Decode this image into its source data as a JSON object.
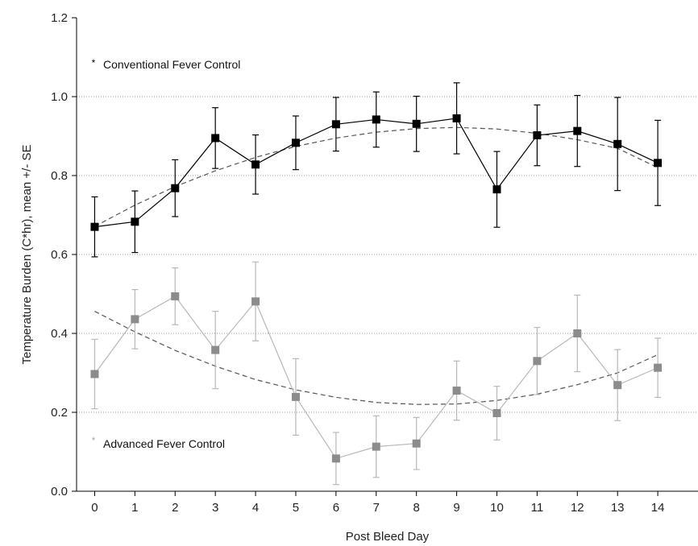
{
  "chart_data": {
    "type": "line",
    "title": "",
    "xlabel": "Post Bleed Day",
    "ylabel": "Temperature Burden (C*hr), mean +/- SE",
    "xlim": [
      -0.45,
      15
    ],
    "ylim": [
      0,
      1.2
    ],
    "x_ticks": [
      "0",
      "1",
      "2",
      "3",
      "4",
      "5",
      "6",
      "7",
      "8",
      "9",
      "10",
      "11",
      "12",
      "13",
      "14"
    ],
    "y_ticks": [
      "0.0",
      "0.2",
      "0.4",
      "0.6",
      "0.8",
      "1.0",
      "1.2"
    ],
    "grid": "horizontal dotted",
    "legend_placement": "inside-left",
    "x": [
      0,
      1,
      2,
      3,
      4,
      5,
      6,
      7,
      8,
      9,
      10,
      11,
      12,
      13,
      14
    ],
    "series": [
      {
        "name": "Conventional Fever Control",
        "color": "#000000",
        "marker": "square",
        "values": [
          0.67,
          0.683,
          0.768,
          0.895,
          0.828,
          0.883,
          0.93,
          0.942,
          0.931,
          0.945,
          0.765,
          0.902,
          0.913,
          0.88,
          0.832
        ],
        "error": [
          0.076,
          0.078,
          0.072,
          0.077,
          0.075,
          0.068,
          0.068,
          0.07,
          0.07,
          0.09,
          0.096,
          0.077,
          0.09,
          0.118,
          0.108
        ],
        "trend": [
          0.671,
          0.725,
          0.772,
          0.812,
          0.846,
          0.874,
          0.895,
          0.91,
          0.919,
          0.922,
          0.918,
          0.907,
          0.891,
          0.869,
          0.82
        ]
      },
      {
        "name": "Advanced Fever Control",
        "color": "#8c8c8c",
        "marker": "square",
        "values": [
          0.297,
          0.436,
          0.494,
          0.358,
          0.481,
          0.239,
          0.083,
          0.113,
          0.121,
          0.255,
          0.198,
          0.33,
          0.4,
          0.269,
          0.313
        ],
        "error": [
          0.088,
          0.075,
          0.072,
          0.098,
          0.1,
          0.097,
          0.066,
          0.078,
          0.066,
          0.075,
          0.068,
          0.085,
          0.097,
          0.09,
          0.075
        ],
        "trend": [
          0.456,
          0.404,
          0.357,
          0.317,
          0.283,
          0.257,
          0.238,
          0.225,
          0.22,
          0.221,
          0.23,
          0.246,
          0.27,
          0.3,
          0.346
        ]
      }
    ]
  }
}
